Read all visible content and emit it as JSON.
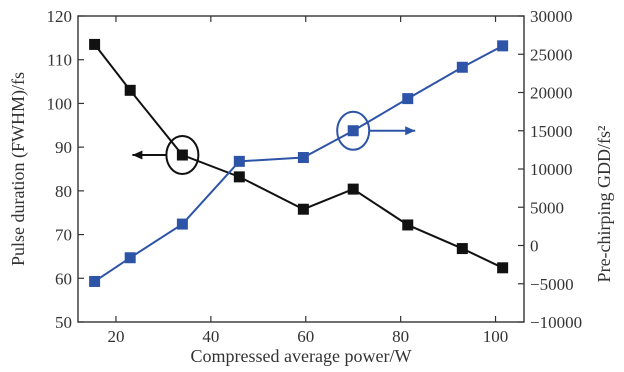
{
  "chart_data": {
    "type": "line",
    "xlabel": "Compressed average power/W",
    "ylabel_left": "Pulse duration (FWHM)/fs",
    "ylabel_right": "Pre-chirping GDD/fs²",
    "xlim": [
      12,
      106
    ],
    "ylim_left": [
      50,
      120
    ],
    "ylim_right": [
      -10000,
      30000
    ],
    "x_ticks": [
      "20",
      "40",
      "60",
      "80",
      "100"
    ],
    "y_left_ticks": [
      "50",
      "60",
      "70",
      "80",
      "90",
      "100",
      "110",
      "120"
    ],
    "y_right_ticks": [
      "−10000",
      "−5000",
      "0",
      "5000",
      "10000",
      "15000",
      "20000",
      "25000",
      "30000"
    ],
    "grid": false,
    "series": [
      {
        "axis": "left",
        "color": "#111111",
        "marker": "square",
        "points": [
          [
            15.5,
            113.5
          ],
          [
            23,
            103
          ],
          [
            34,
            88.2
          ],
          [
            46,
            83.2
          ],
          [
            59.5,
            75.8
          ],
          [
            70,
            80.4
          ],
          [
            81.5,
            72.2
          ],
          [
            93,
            66.8
          ],
          [
            101.5,
            62.4
          ]
        ]
      },
      {
        "axis": "right",
        "color": "#2E54A8",
        "marker": "square",
        "points": [
          [
            15.5,
            -4700
          ],
          [
            23,
            -1600
          ],
          [
            34,
            2800
          ],
          [
            46,
            11000
          ],
          [
            59.5,
            11500
          ],
          [
            70,
            15000
          ],
          [
            81.5,
            19200
          ],
          [
            93,
            23300
          ],
          [
            101.5,
            26100
          ]
        ]
      }
    ],
    "annotations": [
      {
        "type": "ellipse",
        "series": 0,
        "at": [
          34,
          88.2
        ],
        "arrow": "left",
        "color": "#111111"
      },
      {
        "type": "ellipse",
        "series": 1,
        "at": [
          70,
          15000
        ],
        "arrow": "right",
        "color": "#2E54A8"
      }
    ]
  }
}
